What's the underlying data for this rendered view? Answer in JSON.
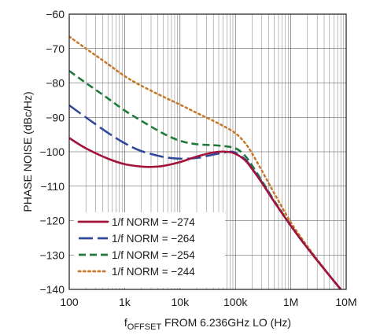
{
  "chart_data": {
    "type": "line",
    "xlabel_main": "f",
    "xlabel_sub": "OFFSET",
    "xlabel_rest": " FROM 6.236GHz LO (Hz)",
    "ylabel": "PHASE NOISE (dBc/Hz)",
    "x_scale": "log",
    "xlim": [
      100,
      10000000
    ],
    "ylim": [
      -140,
      -60
    ],
    "x_ticks": [
      100,
      1000,
      10000,
      100000,
      1000000,
      10000000
    ],
    "x_tick_labels": [
      "100",
      "1k",
      "10k",
      "100k",
      "1M",
      "10M"
    ],
    "y_ticks": [
      -140,
      -130,
      -120,
      -110,
      -100,
      -90,
      -80,
      -70,
      -60
    ],
    "y_tick_labels": [
      "−140",
      "−130",
      "−120",
      "−110",
      "−100",
      "−90",
      "−80",
      "−70",
      "−60"
    ],
    "grid": true,
    "legend_position": "bottom-left",
    "series": [
      {
        "name": "1/f NORM = −274",
        "color": "#a3123a",
        "dash": "solid",
        "x": [
          100,
          200,
          500,
          1000,
          2000,
          3000,
          5000,
          10000,
          20000,
          40000,
          70000,
          100000,
          150000,
          200000,
          300000,
          500000,
          1000000,
          2000000,
          5000000,
          8000000
        ],
        "y": [
          -96,
          -99,
          -102,
          -103.6,
          -104.3,
          -104.4,
          -104.1,
          -103,
          -101.4,
          -100.2,
          -100,
          -100.6,
          -102.5,
          -105,
          -109,
          -114.5,
          -121.5,
          -128,
          -136,
          -140
        ]
      },
      {
        "name": "1/f NORM = −264",
        "color": "#2f4a9b",
        "dash": "long-dash",
        "x": [
          100,
          200,
          500,
          1000,
          2000,
          5000,
          10000,
          20000,
          50000,
          80000,
          100000,
          150000,
          200000,
          300000,
          500000,
          1000000,
          2000000,
          5000000,
          8000000
        ],
        "y": [
          -86.5,
          -90,
          -94.5,
          -97.5,
          -99.8,
          -101.5,
          -102,
          -101.8,
          -100.5,
          -100,
          -100.3,
          -102.2,
          -104.8,
          -108.8,
          -114.4,
          -121.5,
          -128,
          -136,
          -140
        ]
      },
      {
        "name": "1/f NORM = −254",
        "color": "#1f7a3a",
        "dash": "dash",
        "x": [
          100,
          200,
          500,
          1000,
          2000,
          5000,
          10000,
          20000,
          50000,
          100000,
          150000,
          200000,
          300000,
          500000,
          1000000,
          2000000,
          5000000,
          8000000
        ],
        "y": [
          -76.5,
          -80,
          -84.5,
          -88,
          -91,
          -94.7,
          -96.8,
          -97.8,
          -98.2,
          -99,
          -101.2,
          -104,
          -108.4,
          -114.2,
          -121.4,
          -128,
          -136,
          -140
        ]
      },
      {
        "name": "1/f NORM = −244",
        "color": "#c8782a",
        "dash": "dot",
        "x": [
          100,
          200,
          500,
          1000,
          2000,
          5000,
          10000,
          20000,
          50000,
          100000,
          150000,
          200000,
          300000,
          500000,
          1000000,
          2000000,
          5000000,
          8000000
        ],
        "y": [
          -66.5,
          -70,
          -74.5,
          -78,
          -80.8,
          -84,
          -86.3,
          -88.7,
          -91.8,
          -94.6,
          -97.5,
          -100.5,
          -105.5,
          -112,
          -120.5,
          -127.5,
          -136,
          -140
        ]
      }
    ]
  }
}
